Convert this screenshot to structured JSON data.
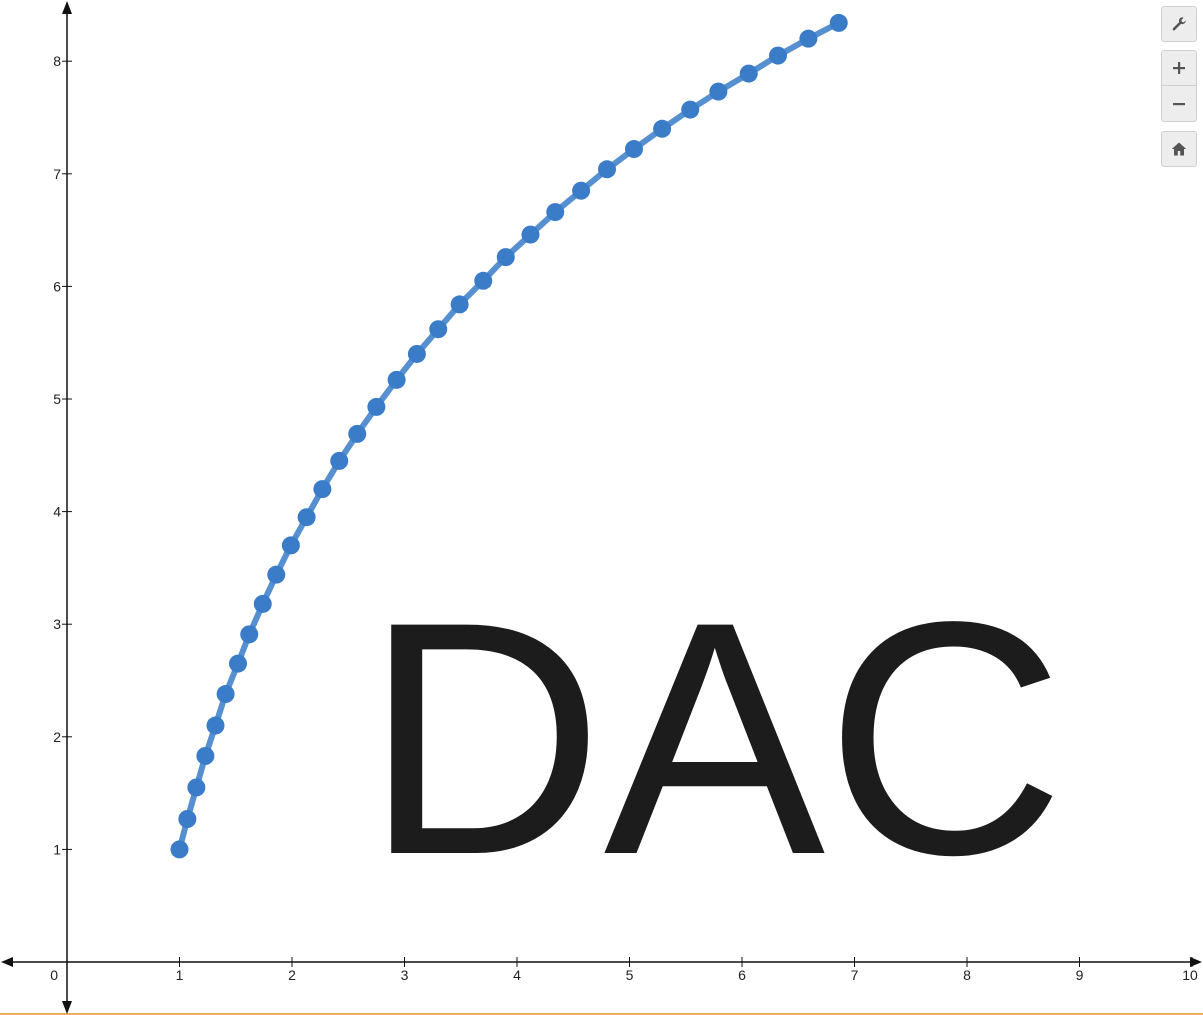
{
  "chart_data": {
    "type": "scatter",
    "title": "",
    "xlabel": "",
    "ylabel": "",
    "xlim": [
      -0.6,
      10.1
    ],
    "ylim": [
      -0.5,
      8.55
    ],
    "grid": false,
    "x_ticks": [
      0,
      1,
      2,
      3,
      4,
      5,
      6,
      7,
      8,
      9,
      10
    ],
    "y_ticks": [
      1,
      2,
      3,
      4,
      5,
      6,
      7,
      8
    ],
    "annotation": "DAC",
    "series": [
      {
        "connected": true,
        "color": "#3a7cc8",
        "x": [
          1,
          1.07,
          1.15,
          1.23,
          1.32,
          1.41,
          1.52,
          1.62,
          1.74,
          1.86,
          1.99,
          2.13,
          2.27,
          2.42,
          2.58,
          2.75,
          2.93,
          3.11,
          3.3,
          3.49,
          3.7,
          3.9,
          4.12,
          4.34,
          4.57,
          4.8,
          5.04,
          5.29,
          5.54,
          5.79,
          6.06,
          6.32,
          6.59,
          6.86
        ],
        "y": [
          1,
          1.27,
          1.55,
          1.83,
          2.1,
          2.38,
          2.65,
          2.91,
          3.18,
          3.44,
          3.7,
          3.95,
          4.2,
          4.45,
          4.69,
          4.93,
          5.17,
          5.4,
          5.62,
          5.84,
          6.05,
          6.26,
          6.46,
          6.66,
          6.85,
          7.04,
          7.22,
          7.4,
          7.57,
          7.73,
          7.89,
          8.05,
          8.2,
          8.34
        ]
      }
    ]
  },
  "controls": {
    "settings_icon": "wrench-icon",
    "zoom_in_icon": "plus-icon",
    "zoom_out_icon": "minus-icon",
    "home_icon": "home-icon"
  }
}
